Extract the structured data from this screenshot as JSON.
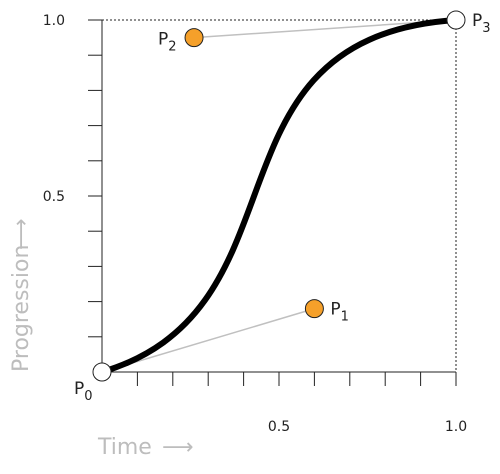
{
  "chart": {
    "x_axis_title": "Time",
    "y_axis_title": "Progression",
    "x_ticks": [
      {
        "value": 0.5,
        "label": "0.5"
      },
      {
        "value": 1.0,
        "label": "1.0"
      }
    ],
    "y_ticks": [
      {
        "value": 0.5,
        "label": "0.5"
      },
      {
        "value": 1.0,
        "label": "1.0"
      }
    ],
    "xlim": [
      0,
      1
    ],
    "ylim": [
      0,
      1
    ],
    "minor_tick_step": 0.1
  },
  "points": [
    {
      "id": "p0",
      "letter": "P",
      "sub": "0",
      "x": 0.0,
      "y": 0.0,
      "type": "endpoint"
    },
    {
      "id": "p1",
      "letter": "P",
      "sub": "1",
      "x": 0.6,
      "y": 0.18,
      "type": "control"
    },
    {
      "id": "p2",
      "letter": "P",
      "sub": "2",
      "x": 0.26,
      "y": 0.95,
      "type": "control"
    },
    {
      "id": "p3",
      "letter": "P",
      "sub": "3",
      "x": 1.0,
      "y": 1.0,
      "type": "endpoint"
    }
  ],
  "colors": {
    "curve": "#000000",
    "control_fill": "#f5a02a",
    "endpoint_fill": "#ffffff",
    "handle": "#c0c0c0",
    "axis_title": "#bdbdbd"
  }
}
